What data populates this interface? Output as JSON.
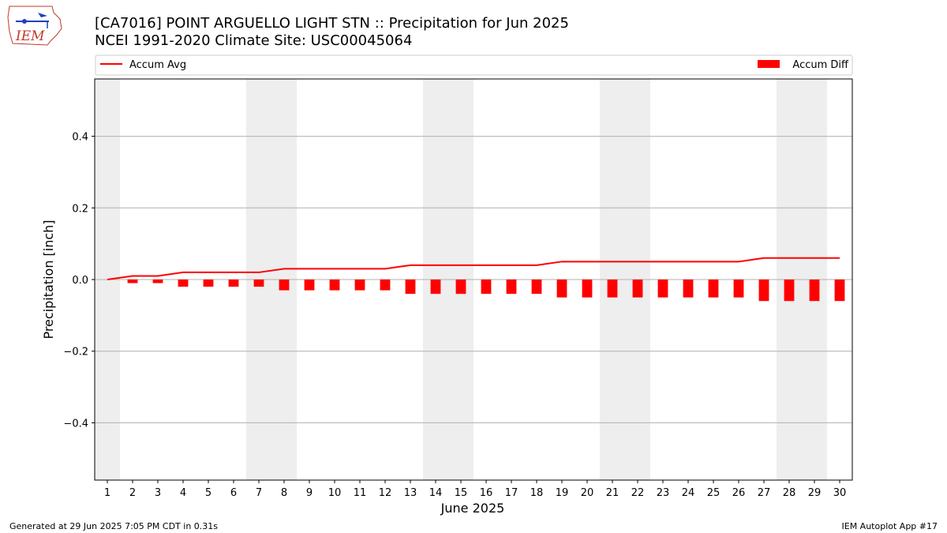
{
  "header": {
    "title_line1": "[CA7016] POINT ARGUELLO LIGHT STN :: Precipitation for Jun 2025",
    "title_line2": "NCEI 1991-2020 Climate Site: USC00045064",
    "logo_text": "IEM"
  },
  "legend": {
    "line_label": "Accum Avg",
    "bar_label": "Accum Diff",
    "placement": "top, above plot"
  },
  "footer": {
    "generated": "Generated at 29 Jun 2025 7:05 PM CDT in 0.31s",
    "app": "IEM Autoplot App #17"
  },
  "colors": {
    "series": "#ff0000",
    "weekend_shade": "#eeeeee",
    "grid": "#b0b0b0"
  },
  "chart_data": {
    "type": "bar",
    "xlabel": "June 2025",
    "ylabel": "Precipitation [inch]",
    "x": [
      1,
      2,
      3,
      4,
      5,
      6,
      7,
      8,
      9,
      10,
      11,
      12,
      13,
      14,
      15,
      16,
      17,
      18,
      19,
      20,
      21,
      22,
      23,
      24,
      25,
      26,
      27,
      28,
      29,
      30
    ],
    "xlim": [
      0.5,
      30.5
    ],
    "ylim": [
      -0.56,
      0.56
    ],
    "yticks": [
      -0.4,
      -0.2,
      0.0,
      0.2,
      0.4
    ],
    "yticklabels": [
      "−0.4",
      "−0.2",
      "0.0",
      "0.2",
      "0.4"
    ],
    "grid": "horizontal",
    "weekend_days": [
      1,
      7,
      8,
      14,
      15,
      21,
      22,
      28,
      29
    ],
    "series": [
      {
        "name": "Accum Avg",
        "kind": "line",
        "values": [
          0.0,
          0.01,
          0.01,
          0.02,
          0.02,
          0.02,
          0.02,
          0.03,
          0.03,
          0.03,
          0.03,
          0.03,
          0.04,
          0.04,
          0.04,
          0.04,
          0.04,
          0.04,
          0.05,
          0.05,
          0.05,
          0.05,
          0.05,
          0.05,
          0.05,
          0.05,
          0.06,
          0.06,
          0.06,
          0.06
        ]
      },
      {
        "name": "Accum Diff",
        "kind": "bar",
        "values": [
          0.0,
          -0.01,
          -0.01,
          -0.02,
          -0.02,
          -0.02,
          -0.02,
          -0.03,
          -0.03,
          -0.03,
          -0.03,
          -0.03,
          -0.04,
          -0.04,
          -0.04,
          -0.04,
          -0.04,
          -0.04,
          -0.05,
          -0.05,
          -0.05,
          -0.05,
          -0.05,
          -0.05,
          -0.05,
          -0.05,
          -0.06,
          -0.06,
          -0.06,
          -0.06
        ]
      }
    ]
  }
}
